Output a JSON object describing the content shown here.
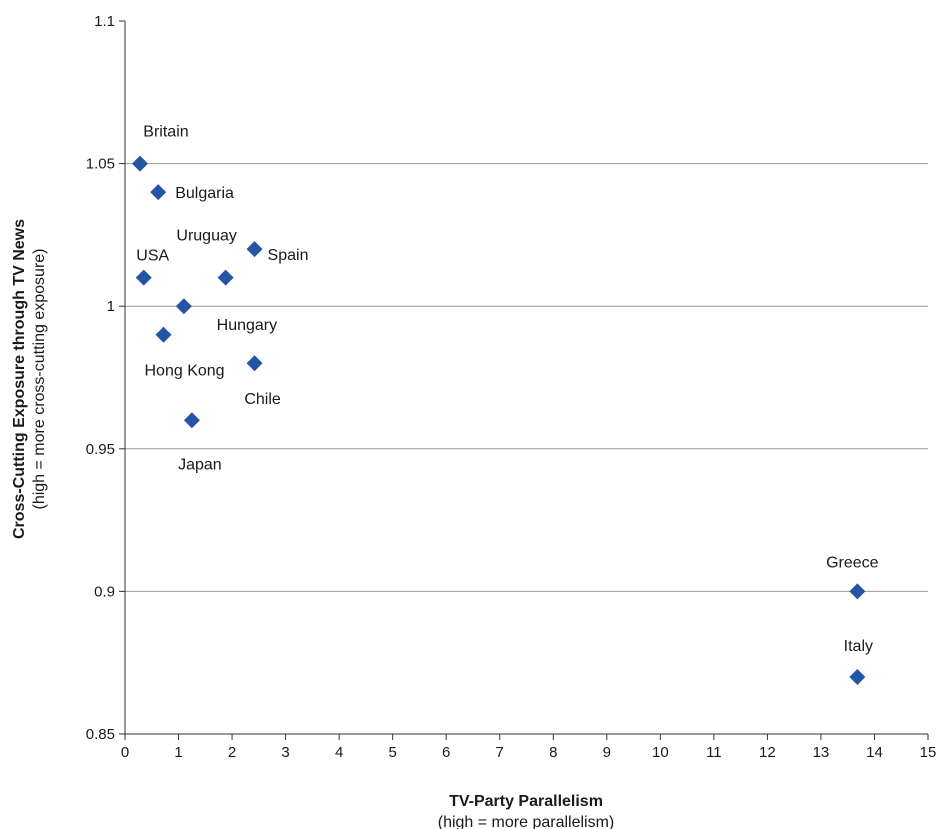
{
  "chart_data": {
    "type": "scatter",
    "title": "",
    "xlabel": "TV-Party Parallelism",
    "xlabel_note": "(high = more parallelism)",
    "ylabel": "Cross-Cutting Exposure through TV News",
    "ylabel_note": "(high = more cross-cutting exposure)",
    "xlim": [
      0,
      15
    ],
    "ylim": [
      0.85,
      1.1
    ],
    "x_ticks": [
      0,
      1,
      2,
      3,
      4,
      5,
      6,
      7,
      8,
      9,
      10,
      11,
      12,
      13,
      14,
      15
    ],
    "y_ticks": [
      0.85,
      0.9,
      0.95,
      1,
      1.05,
      1.1
    ],
    "y_tick_labels": [
      "0.85",
      "0.9",
      "0.95",
      "1",
      "1.05",
      "1.1"
    ],
    "grid": "horizontal",
    "legend": "none",
    "marker": "diamond",
    "color": "#2455a4",
    "points": [
      {
        "label": "Britain",
        "x": 0.28,
        "y": 1.05
      },
      {
        "label": "Bulgaria",
        "x": 0.62,
        "y": 1.04
      },
      {
        "label": "Uruguay",
        "x": 1.88,
        "y": 1.01
      },
      {
        "label": "Spain",
        "x": 2.42,
        "y": 1.02
      },
      {
        "label": "USA",
        "x": 0.35,
        "y": 1.01
      },
      {
        "label": "Hungary",
        "x": 1.1,
        "y": 1.0
      },
      {
        "label": "Hong Kong",
        "x": 0.72,
        "y": 0.99
      },
      {
        "label": "Chile",
        "x": 2.42,
        "y": 0.98
      },
      {
        "label": "Japan",
        "x": 1.25,
        "y": 0.96
      },
      {
        "label": "Greece",
        "x": 13.68,
        "y": 0.9
      },
      {
        "label": "Italy",
        "x": 13.68,
        "y": 0.87
      }
    ]
  }
}
